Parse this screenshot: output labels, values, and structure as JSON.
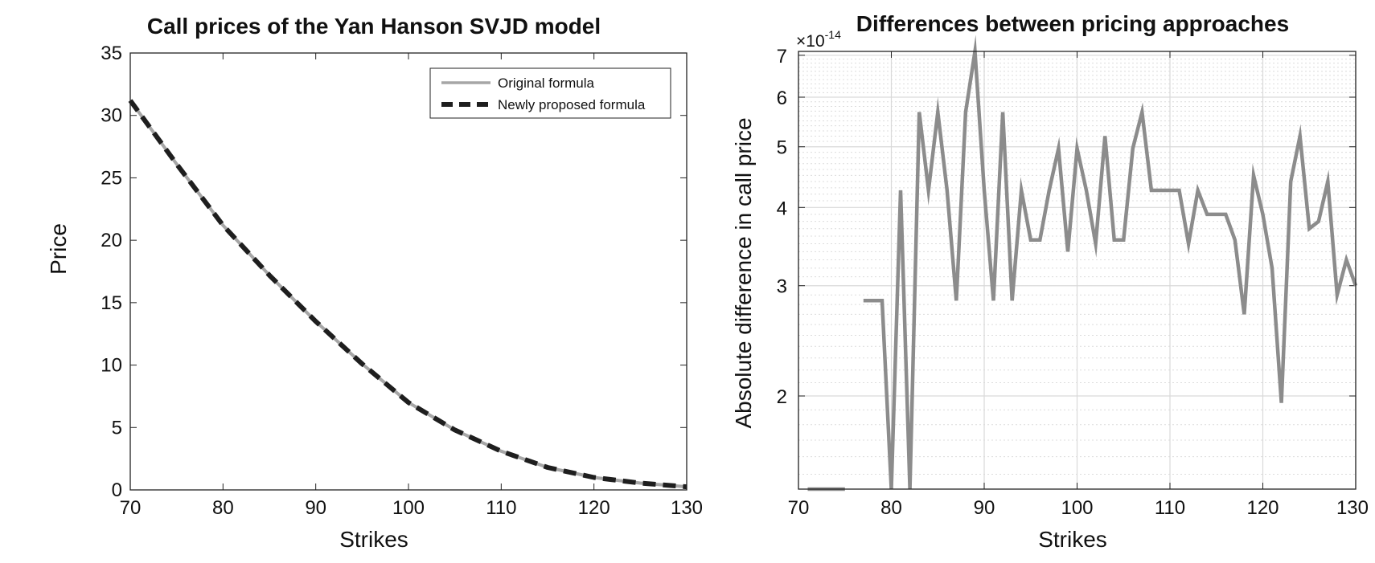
{
  "chart_data": [
    {
      "type": "line",
      "title": "Call prices of the Yan Hanson SVJD model",
      "xlabel": "Strikes",
      "ylabel": "Price",
      "xlim": [
        70,
        130
      ],
      "ylim": [
        0,
        35
      ],
      "xticks": [
        70,
        80,
        90,
        100,
        110,
        120,
        130
      ],
      "yticks": [
        0,
        5,
        10,
        15,
        20,
        25,
        30,
        35
      ],
      "grid": false,
      "legend_position": "top-right",
      "x": [
        70,
        75,
        80,
        85,
        90,
        95,
        100,
        105,
        110,
        115,
        120,
        125,
        130
      ],
      "series": [
        {
          "name": "Original formula",
          "color": "#a6a6a6",
          "style": "solid",
          "values": [
            31.2,
            26.1,
            21.2,
            17.2,
            13.5,
            10.1,
            7.0,
            4.8,
            3.1,
            1.8,
            1.0,
            0.55,
            0.25
          ]
        },
        {
          "name": "Newly proposed formula",
          "color": "#1e1e1e",
          "style": "dashed",
          "values": [
            31.2,
            26.1,
            21.2,
            17.2,
            13.5,
            10.1,
            7.0,
            4.8,
            3.1,
            1.8,
            1.0,
            0.55,
            0.25
          ]
        }
      ]
    },
    {
      "type": "line",
      "title": "Differences between pricing approaches",
      "xlabel": "Strikes",
      "ylabel": "Absolute difference in call price",
      "yscale": "log",
      "exponent_label_base": "×10",
      "exponent_label_power": "-14",
      "xlim": [
        70,
        130
      ],
      "ylim": [
        1.42,
        7.1
      ],
      "xticks": [
        70,
        80,
        90,
        100,
        110,
        120,
        130
      ],
      "yticks": [
        2,
        3,
        4,
        5,
        6,
        7
      ],
      "grid": true,
      "minor_grid": true,
      "series": [
        {
          "color": "#8c8c8c",
          "x": [
            71,
            72,
            73,
            74,
            75,
            77,
            78,
            79,
            80,
            81,
            82,
            83,
            84,
            85,
            86,
            87,
            88,
            89,
            90,
            91,
            92,
            93,
            94,
            95,
            96,
            97,
            98,
            99,
            100,
            101,
            102,
            103,
            104,
            105,
            106,
            107,
            108,
            109,
            110,
            111,
            112,
            113,
            114,
            115,
            116,
            117,
            118,
            119,
            120,
            121,
            122,
            123,
            124,
            125,
            126,
            127,
            128,
            129,
            130
          ],
          "values": [
            1.42,
            1.42,
            1.42,
            1.42,
            1.42,
            2.84,
            2.84,
            2.84,
            1.42,
            4.26,
            1.42,
            5.68,
            4.26,
            5.68,
            4.26,
            2.84,
            5.68,
            7.1,
            4.26,
            2.84,
            5.68,
            2.84,
            4.26,
            3.55,
            3.55,
            4.26,
            4.97,
            3.4,
            4.97,
            4.26,
            3.5,
            5.2,
            3.55,
            3.55,
            4.97,
            5.68,
            4.26,
            4.26,
            4.26,
            4.26,
            3.5,
            4.26,
            3.9,
            3.9,
            3.9,
            3.55,
            2.7,
            4.5,
            3.9,
            3.2,
            1.95,
            4.4,
            5.2,
            3.7,
            3.8,
            4.4,
            2.9,
            3.3,
            3.0
          ]
        }
      ]
    }
  ]
}
